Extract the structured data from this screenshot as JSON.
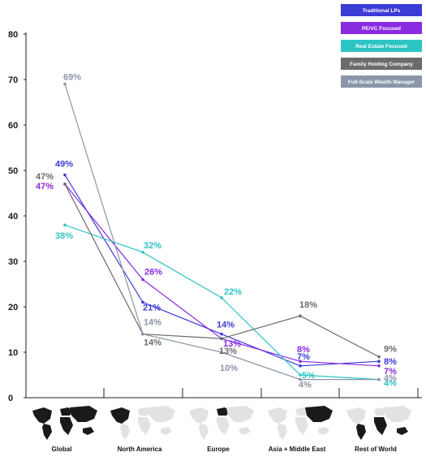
{
  "chart_data": {
    "type": "line",
    "title": "",
    "xlabel": "",
    "ylabel": "",
    "ylim": [
      0,
      80
    ],
    "yticks": [
      0,
      10,
      20,
      30,
      40,
      50,
      60,
      70,
      80
    ],
    "categories": [
      "Global",
      "North America",
      "Europe",
      "Asia + Middle East",
      "Rest of World"
    ],
    "legend_position": "top-right",
    "series": [
      {
        "name": "Traditional LPs",
        "color": "#3b3bd6",
        "values": [
          49,
          21,
          14,
          7,
          8
        ],
        "labels": [
          "49%",
          "21%",
          "14%",
          "7%",
          "8%"
        ]
      },
      {
        "name": "PE/VC Focused",
        "color": "#8a2be2",
        "values": [
          47,
          26,
          13,
          8,
          7
        ],
        "labels": [
          "47%",
          "26%",
          "13%",
          "8%",
          "7%"
        ]
      },
      {
        "name": "Real Estate Focused",
        "color": "#2ec4c4",
        "values": [
          38,
          32,
          22,
          5,
          4
        ],
        "labels": [
          "38%",
          "32%",
          "22%",
          "5%",
          "4%"
        ]
      },
      {
        "name": "Family Holding Company",
        "color": "#6b6b6b",
        "values": [
          47,
          14,
          13,
          18,
          9
        ],
        "labels": [
          "47%",
          "14%",
          "13%",
          "18%",
          "9%"
        ]
      },
      {
        "name": "Full-Scale Wealth Manager",
        "color": "#8a96a8",
        "values": [
          69,
          14,
          10,
          4,
          4
        ],
        "labels": [
          "69%",
          "14%",
          "10%",
          "4%",
          "4%"
        ]
      }
    ]
  }
}
